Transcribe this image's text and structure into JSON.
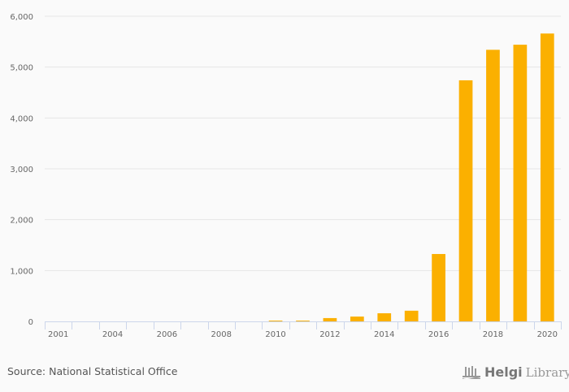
{
  "chart_data": {
    "type": "bar",
    "title": "",
    "xlabel": "",
    "ylabel": "",
    "categories": [
      "2001",
      "2003",
      "2004",
      "2005",
      "2006",
      "2007",
      "2008",
      "2009",
      "2010",
      "2011",
      "2012",
      "2013",
      "2014",
      "2015",
      "2016",
      "2017",
      "2018",
      "2019",
      "2020"
    ],
    "x_tick_labels": [
      "2001",
      "",
      "2004",
      "",
      "2006",
      "",
      "2008",
      "",
      "2010",
      "",
      "2012",
      "",
      "2014",
      "",
      "2016",
      "",
      "2018",
      "",
      "2020"
    ],
    "values": [
      0,
      0,
      0,
      0,
      0,
      0,
      0,
      0,
      15,
      15,
      65,
      95,
      160,
      210,
      1325,
      4740,
      5340,
      5440,
      5660
    ],
    "ylim": [
      0,
      6000
    ],
    "y_ticks": [
      0,
      1000,
      2000,
      3000,
      4000,
      5000,
      6000
    ],
    "y_tick_labels": [
      "0",
      "1,000",
      "2,000",
      "3,000",
      "4,000",
      "5,000",
      "6,000"
    ],
    "grid": true,
    "legend": "none",
    "bar_color": "#fbb000"
  },
  "footer": {
    "source": "Source: National Statistical Office",
    "logo_bold": "Helgi",
    "logo_light": "Library."
  }
}
